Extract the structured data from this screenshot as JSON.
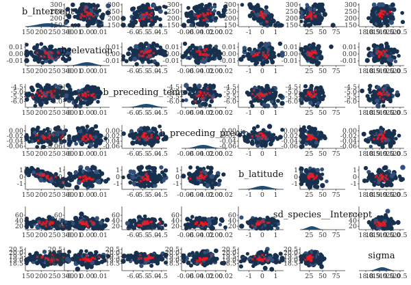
{
  "colors": {
    "cloud": "#17304e",
    "cloud_edge": "#33507a",
    "samples": "#ee1c25",
    "density_fill": "#1f4e79",
    "density_line": "#15365a",
    "text": "#333333"
  },
  "chart_data": {
    "type": "scatter",
    "layout": "pairs-matrix 7x7",
    "title": "",
    "legend": "none",
    "grid": false,
    "diagonal": "density",
    "off_diagonal": "scatter of posterior draws with red sample markers",
    "parameters": [
      {
        "name": "b_Intercept",
        "label": "b_Intercept",
        "range": [
          140,
          310
        ],
        "x_ticks": [
          "150",
          "200",
          "250",
          "300"
        ],
        "x_tick_values": [
          150,
          200,
          250,
          300
        ],
        "y_ticks": [
          "300",
          "250",
          "200",
          "150"
        ],
        "y_tick_values": [
          300,
          250,
          200,
          150
        ],
        "center": 225,
        "spread": 40
      },
      {
        "name": "b_elevation",
        "label": "b_elevation",
        "range": [
          -0.017,
          0.017
        ],
        "x_ticks": [
          "-0.01",
          "0.00",
          "0.01"
        ],
        "x_tick_values": [
          -0.01,
          0,
          0.01
        ],
        "y_ticks": [
          "0.01",
          "0.00",
          "-0.01"
        ],
        "y_tick_values": [
          0.01,
          0,
          -0.01
        ],
        "center": 0,
        "spread": 0.0055
      },
      {
        "name": "b_preceding_temp",
        "label": "b_preceding_temp",
        "range": [
          -6.6,
          -4.2
        ],
        "x_ticks": [
          "-6.0",
          "-5.5",
          "-5.0",
          "-4.5"
        ],
        "x_tick_values": [
          -6.0,
          -5.5,
          -5.0,
          -4.5
        ],
        "y_ticks": [
          "-4.5",
          "-5.0",
          "-5.5",
          "-6.0"
        ],
        "y_tick_values": [
          -4.5,
          -5.0,
          -5.5,
          -6.0
        ],
        "center": -5.3,
        "spread": 0.4
      },
      {
        "name": "b_preceding_precip",
        "label": "b_preceding_precip",
        "range": [
          -0.068,
          0.022
        ],
        "x_ticks": [
          "-0.06",
          "-0.04",
          "-0.02",
          "0.00",
          "0.02"
        ],
        "x_tick_values": [
          -0.06,
          -0.04,
          -0.02,
          0,
          0.02
        ],
        "y_ticks": [
          "0.00",
          "-0.02",
          "-0.04",
          "-0.06"
        ],
        "y_tick_values": [
          0,
          -0.02,
          -0.04,
          -0.06
        ],
        "center": -0.025,
        "spread": 0.014
      },
      {
        "name": "b_latitude",
        "label": "b_latitude",
        "range": [
          -1.8,
          1.6
        ],
        "x_ticks": [
          "-1",
          "0",
          "1"
        ],
        "x_tick_values": [
          -1,
          0,
          1
        ],
        "y_ticks": [
          "1",
          "0",
          "-1"
        ],
        "y_tick_values": [
          1,
          0,
          -1
        ],
        "center": 0,
        "spread": 0.55
      },
      {
        "name": "sd_species__Intercept",
        "label": "sd_species__Intercept",
        "range": [
          8,
          92
        ],
        "x_ticks": [
          "25",
          "50",
          "75"
        ],
        "x_tick_values": [
          25,
          50,
          75
        ],
        "y_ticks": [
          "60",
          "40",
          "20"
        ],
        "y_tick_values": [
          60,
          40,
          20
        ],
        "center": 30,
        "spread": 9
      },
      {
        "name": "sigma",
        "label": "sigma",
        "range": [
          17.5,
          20.8
        ],
        "x_ticks": [
          "18.0",
          "18.5",
          "19.0",
          "19.5",
          "20.0",
          "20.5"
        ],
        "x_tick_values": [
          18.0,
          18.5,
          19.0,
          19.5,
          20.0,
          20.5
        ],
        "y_ticks": [
          "20.5",
          "20.0",
          "19.5",
          "19.0",
          "18.5"
        ],
        "y_tick_values": [
          20.5,
          20.0,
          19.5,
          19.0,
          18.5
        ],
        "center": 19.2,
        "spread": 0.4
      }
    ],
    "correlations": [
      [
        1,
        -0.1,
        0.2,
        0.1,
        -0.85,
        0.0,
        0.1
      ],
      [
        -0.1,
        1,
        0.1,
        0.0,
        0.0,
        0.0,
        0.0
      ],
      [
        0.2,
        0.1,
        1,
        0.1,
        0.0,
        0.1,
        0.0
      ],
      [
        0.1,
        0.0,
        0.1,
        1,
        0.0,
        0.0,
        0.0
      ],
      [
        -0.85,
        0.0,
        0.0,
        0.0,
        1,
        0.0,
        0.0
      ],
      [
        0.0,
        0.0,
        0.1,
        0.0,
        0.0,
        1,
        0.0
      ],
      [
        0.1,
        0.0,
        0.0,
        0.0,
        0.0,
        0.0,
        1
      ]
    ]
  }
}
